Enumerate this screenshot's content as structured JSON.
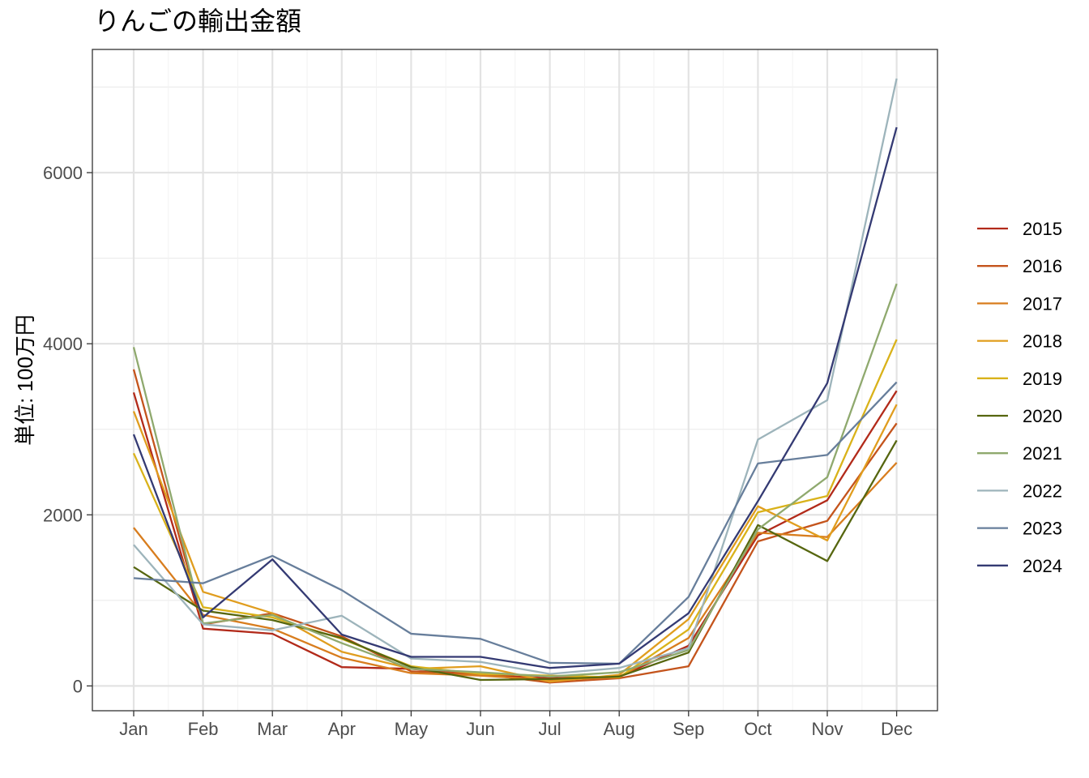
{
  "chart_data": {
    "type": "line",
    "title": "りんごの輸出金額",
    "xlabel": "",
    "ylabel": "単位: 100万円",
    "categories": [
      "Jan",
      "Feb",
      "Mar",
      "Apr",
      "May",
      "Jun",
      "Jul",
      "Aug",
      "Sep",
      "Oct",
      "Nov",
      "Dec"
    ],
    "ylim": [
      -290,
      7440
    ],
    "yticks": [
      0,
      2000,
      4000,
      6000
    ],
    "ytick_labels": [
      "0",
      "2000",
      "4000",
      "6000"
    ],
    "grid": true,
    "legend_position": "right",
    "series": [
      {
        "name": "2015",
        "color": "#B22A1A",
        "values": [
          3430,
          670,
          610,
          220,
          200,
          130,
          90,
          110,
          470,
          1760,
          2170,
          3450
        ]
      },
      {
        "name": "2016",
        "color": "#C4541C",
        "values": [
          3700,
          720,
          850,
          580,
          170,
          140,
          40,
          90,
          230,
          1690,
          1930,
          3070
        ]
      },
      {
        "name": "2017",
        "color": "#D87D1E",
        "values": [
          1850,
          830,
          670,
          330,
          150,
          120,
          70,
          100,
          560,
          1790,
          1740,
          2610
        ]
      },
      {
        "name": "2018",
        "color": "#E09D1E",
        "values": [
          3210,
          1100,
          850,
          400,
          200,
          230,
          50,
          130,
          780,
          2100,
          1700,
          3290
        ]
      },
      {
        "name": "2019",
        "color": "#D9B21A",
        "values": [
          2720,
          920,
          800,
          550,
          230,
          140,
          120,
          100,
          660,
          2030,
          2220,
          4050
        ]
      },
      {
        "name": "2020",
        "color": "#56660F",
        "values": [
          1390,
          880,
          770,
          560,
          220,
          70,
          80,
          110,
          390,
          1880,
          1460,
          2870
        ]
      },
      {
        "name": "2021",
        "color": "#8FA96E",
        "values": [
          3960,
          730,
          830,
          500,
          200,
          160,
          110,
          160,
          420,
          1830,
          2440,
          4700
        ]
      },
      {
        "name": "2022",
        "color": "#9DB4BB",
        "values": [
          1650,
          720,
          650,
          820,
          320,
          280,
          140,
          210,
          440,
          2880,
          3340,
          7100
        ]
      },
      {
        "name": "2023",
        "color": "#677E9B",
        "values": [
          1260,
          1200,
          1520,
          1120,
          610,
          550,
          270,
          260,
          1040,
          2600,
          2700,
          3550
        ]
      },
      {
        "name": "2024",
        "color": "#343A73",
        "values": [
          2940,
          800,
          1480,
          600,
          340,
          340,
          210,
          260,
          850,
          2160,
          3540,
          6530
        ]
      }
    ]
  }
}
